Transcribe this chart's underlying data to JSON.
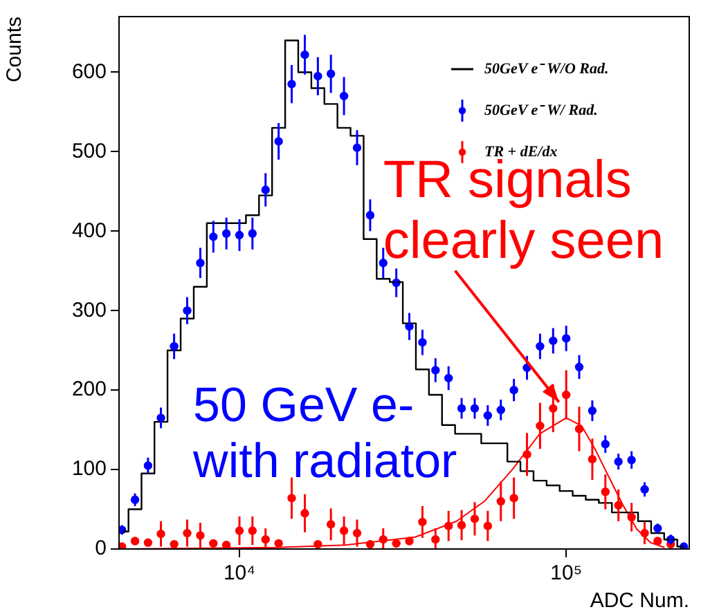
{
  "chart_data": {
    "type": "scatter",
    "xlabel": "ADC Num.",
    "ylabel": "Counts",
    "x": [
      4370,
      4790,
      5250,
      5750,
      6310,
      6920,
      7590,
      8320,
      9120,
      10000,
      10960,
      12020,
      13180,
      14450,
      15850,
      17380,
      19050,
      20890,
      22910,
      25120,
      27540,
      30200,
      33110,
      36310,
      39810,
      43650,
      47860,
      52480,
      57540,
      63100,
      69180,
      75860,
      83180,
      91200,
      100000,
      109600,
      120200,
      131800,
      144500,
      158500,
      173800,
      190500,
      208900,
      229100
    ],
    "series": [
      {
        "name": "50GeV e⁻ W/O Rad.",
        "type": "step",
        "color": "#000000",
        "values": [
          22,
          50,
          95,
          160,
          250,
          290,
          330,
          410,
          410,
          410,
          420,
          445,
          530,
          640,
          600,
          580,
          560,
          530,
          520,
          390,
          340,
          336,
          284,
          226,
          194,
          156,
          145,
          145,
          133,
          133,
          110,
          98,
          86,
          80,
          73,
          67,
          62,
          58,
          46,
          46,
          35,
          20,
          12,
          3
        ]
      },
      {
        "name": "50GeV e⁻ W/ Rad.",
        "marker": "circle",
        "color": "#0000ff",
        "values": [
          24,
          62,
          105,
          165,
          255,
          300,
          360,
          393,
          397,
          395,
          397,
          452,
          513,
          585,
          622,
          595,
          598,
          570,
          505,
          420,
          360,
          335,
          280,
          260,
          225,
          215,
          177,
          177,
          168,
          175,
          200,
          228,
          255,
          262,
          265,
          229,
          174,
          132,
          110,
          112,
          75,
          26,
          12,
          3
        ],
        "errors": [
          6,
          8,
          10,
          13,
          16,
          17,
          19,
          20,
          20,
          20,
          20,
          21,
          23,
          24,
          25,
          24,
          24,
          24,
          22,
          20,
          19,
          18,
          17,
          16,
          15,
          15,
          13,
          13,
          13,
          13,
          14,
          15,
          16,
          16,
          16,
          15,
          13,
          11,
          10,
          11,
          9,
          6,
          6,
          null
        ]
      },
      {
        "name": "TR + dE/dx",
        "marker": "circle",
        "color": "#ff0000",
        "values": [
          3,
          10,
          8,
          19,
          6,
          20,
          17,
          7,
          5,
          23,
          23,
          12,
          7,
          64,
          45,
          6,
          31,
          23,
          20,
          6,
          12,
          7,
          10,
          34,
          12,
          29,
          30,
          38,
          29,
          60,
          64,
          119,
          155,
          177,
          194,
          151,
          113,
          72,
          55,
          40,
          20,
          10,
          6,
          null
        ],
        "errors": [
          null,
          null,
          null,
          16,
          null,
          17,
          16,
          null,
          null,
          18,
          18,
          [
            0,
            26
          ],
          null,
          26,
          24,
          null,
          20,
          18,
          17,
          null,
          [
            0,
            26
          ],
          null,
          null,
          20,
          [
            0,
            26
          ],
          19,
          19,
          21,
          19,
          25,
          26,
          27,
          29,
          30,
          31,
          28,
          26,
          22,
          20,
          18,
          14,
          null,
          null,
          null
        ]
      },
      {
        "type": "line",
        "color": "#ff0000",
        "x": [
          4370,
          13010,
          21200,
          34500,
          46200,
          56200,
          68400,
          83000,
          100000,
          111400,
          122800,
          135300,
          149300,
          164500,
          181300,
          199900
        ],
        "values": [
          0,
          2,
          5,
          15,
          35,
          60,
          100,
          145,
          165,
          155,
          125,
          90,
          55,
          25,
          8,
          2
        ]
      }
    ],
    "xlim": [
      4280,
      238000
    ],
    "ylim": [
      0,
      670
    ],
    "xticks": [
      {
        "value": 10000,
        "label": "10⁴"
      },
      {
        "value": 100000,
        "label": "10⁵"
      }
    ],
    "yticks": [
      0,
      100,
      200,
      300,
      400,
      500,
      600
    ],
    "log": "x",
    "grid": false,
    "legend": "top right",
    "annotations": [
      {
        "text": "TR signals clearly seen",
        "x": 95000,
        "y": 185
      },
      "50 GeV e- with radiator"
    ]
  }
}
